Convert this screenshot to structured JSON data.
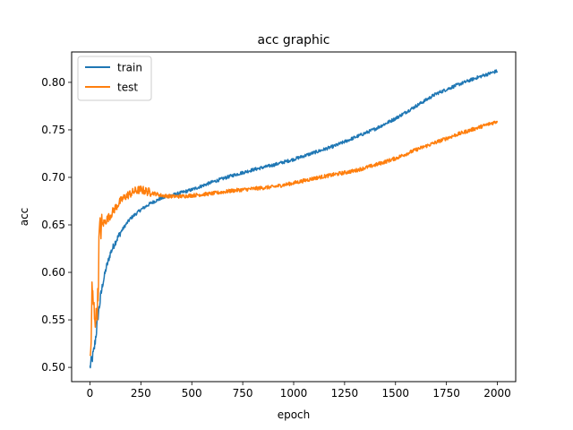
{
  "chart_data": {
    "type": "line",
    "title": "acc graphic",
    "xlabel": "epoch",
    "ylabel": "acc",
    "xlim": [
      -90,
      2090
    ],
    "ylim": [
      0.485,
      0.832
    ],
    "xticks": [
      0,
      250,
      500,
      750,
      1000,
      1250,
      1500,
      1750,
      2000
    ],
    "xtick_labels": [
      "0",
      "250",
      "500",
      "750",
      "1000",
      "1250",
      "1500",
      "1750",
      "2000"
    ],
    "yticks": [
      0.5,
      0.55,
      0.6,
      0.65,
      0.7,
      0.75,
      0.8
    ],
    "ytick_labels": [
      "0.50",
      "0.55",
      "0.60",
      "0.65",
      "0.70",
      "0.75",
      "0.80"
    ],
    "grid": false,
    "legend_position": "top-left",
    "series": [
      {
        "name": "train",
        "color": "#1f77b4",
        "x": [
          0,
          5,
          10,
          20,
          30,
          40,
          50,
          60,
          70,
          80,
          90,
          100,
          125,
          150,
          175,
          200,
          250,
          300,
          350,
          400,
          450,
          500,
          550,
          600,
          700,
          800,
          900,
          1000,
          1100,
          1200,
          1300,
          1400,
          1500,
          1600,
          1700,
          1800,
          1900,
          2000
        ],
        "values": [
          0.5,
          0.505,
          0.508,
          0.518,
          0.535,
          0.555,
          0.57,
          0.585,
          0.595,
          0.605,
          0.612,
          0.62,
          0.632,
          0.642,
          0.65,
          0.657,
          0.666,
          0.673,
          0.678,
          0.681,
          0.684,
          0.687,
          0.691,
          0.695,
          0.702,
          0.708,
          0.713,
          0.719,
          0.726,
          0.733,
          0.742,
          0.751,
          0.762,
          0.775,
          0.788,
          0.797,
          0.805,
          0.812
        ]
      },
      {
        "name": "test",
        "color": "#ff7f0e",
        "x": [
          0,
          5,
          10,
          20,
          30,
          40,
          45,
          50,
          60,
          80,
          100,
          125,
          150,
          175,
          200,
          225,
          250,
          300,
          350,
          400,
          450,
          500,
          600,
          700,
          800,
          900,
          1000,
          1100,
          1200,
          1300,
          1400,
          1500,
          1600,
          1700,
          1800,
          1900,
          2000
        ],
        "values": [
          0.505,
          0.52,
          0.58,
          0.56,
          0.55,
          0.575,
          0.64,
          0.645,
          0.65,
          0.655,
          0.66,
          0.668,
          0.675,
          0.68,
          0.683,
          0.686,
          0.687,
          0.684,
          0.681,
          0.68,
          0.68,
          0.681,
          0.683,
          0.686,
          0.688,
          0.69,
          0.694,
          0.699,
          0.703,
          0.707,
          0.713,
          0.72,
          0.729,
          0.737,
          0.745,
          0.752,
          0.759
        ]
      }
    ]
  }
}
